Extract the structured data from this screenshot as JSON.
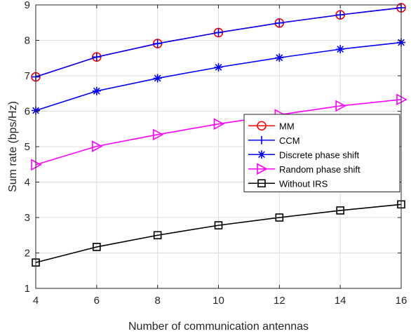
{
  "chart_data": {
    "type": "line",
    "title": "",
    "xlabel": "Number of communication antennas",
    "ylabel": "Sum rate (bps/Hz)",
    "x": [
      4,
      6,
      8,
      10,
      12,
      14,
      16
    ],
    "xlim": [
      4,
      16
    ],
    "ylim": [
      1,
      9
    ],
    "xticks": [
      "4",
      "6",
      "8",
      "10",
      "12",
      "14",
      "16"
    ],
    "yticks": [
      "1",
      "2",
      "3",
      "4",
      "5",
      "6",
      "7",
      "8",
      "9"
    ],
    "grid": true,
    "legend_position": "center-right",
    "series": [
      {
        "name": "MM",
        "color": "#ff0000",
        "marker": "circle",
        "values": [
          6.97,
          7.53,
          7.91,
          8.22,
          8.49,
          8.72,
          8.92
        ]
      },
      {
        "name": "CCM",
        "color": "#0000ff",
        "marker": "plus",
        "values": [
          6.97,
          7.53,
          7.91,
          8.22,
          8.49,
          8.72,
          8.92
        ]
      },
      {
        "name": "Discrete phase shift",
        "color": "#0000ff",
        "marker": "asterisk",
        "values": [
          6.02,
          6.57,
          6.93,
          7.24,
          7.51,
          7.75,
          7.94
        ]
      },
      {
        "name": "Random phase shift",
        "color": "#ff00ff",
        "marker": "triangle-right",
        "values": [
          4.49,
          5.01,
          5.34,
          5.64,
          5.9,
          6.15,
          6.33
        ]
      },
      {
        "name": "Without IRS",
        "color": "#000000",
        "marker": "square",
        "values": [
          1.73,
          2.17,
          2.5,
          2.78,
          3.0,
          3.2,
          3.37
        ]
      }
    ]
  }
}
